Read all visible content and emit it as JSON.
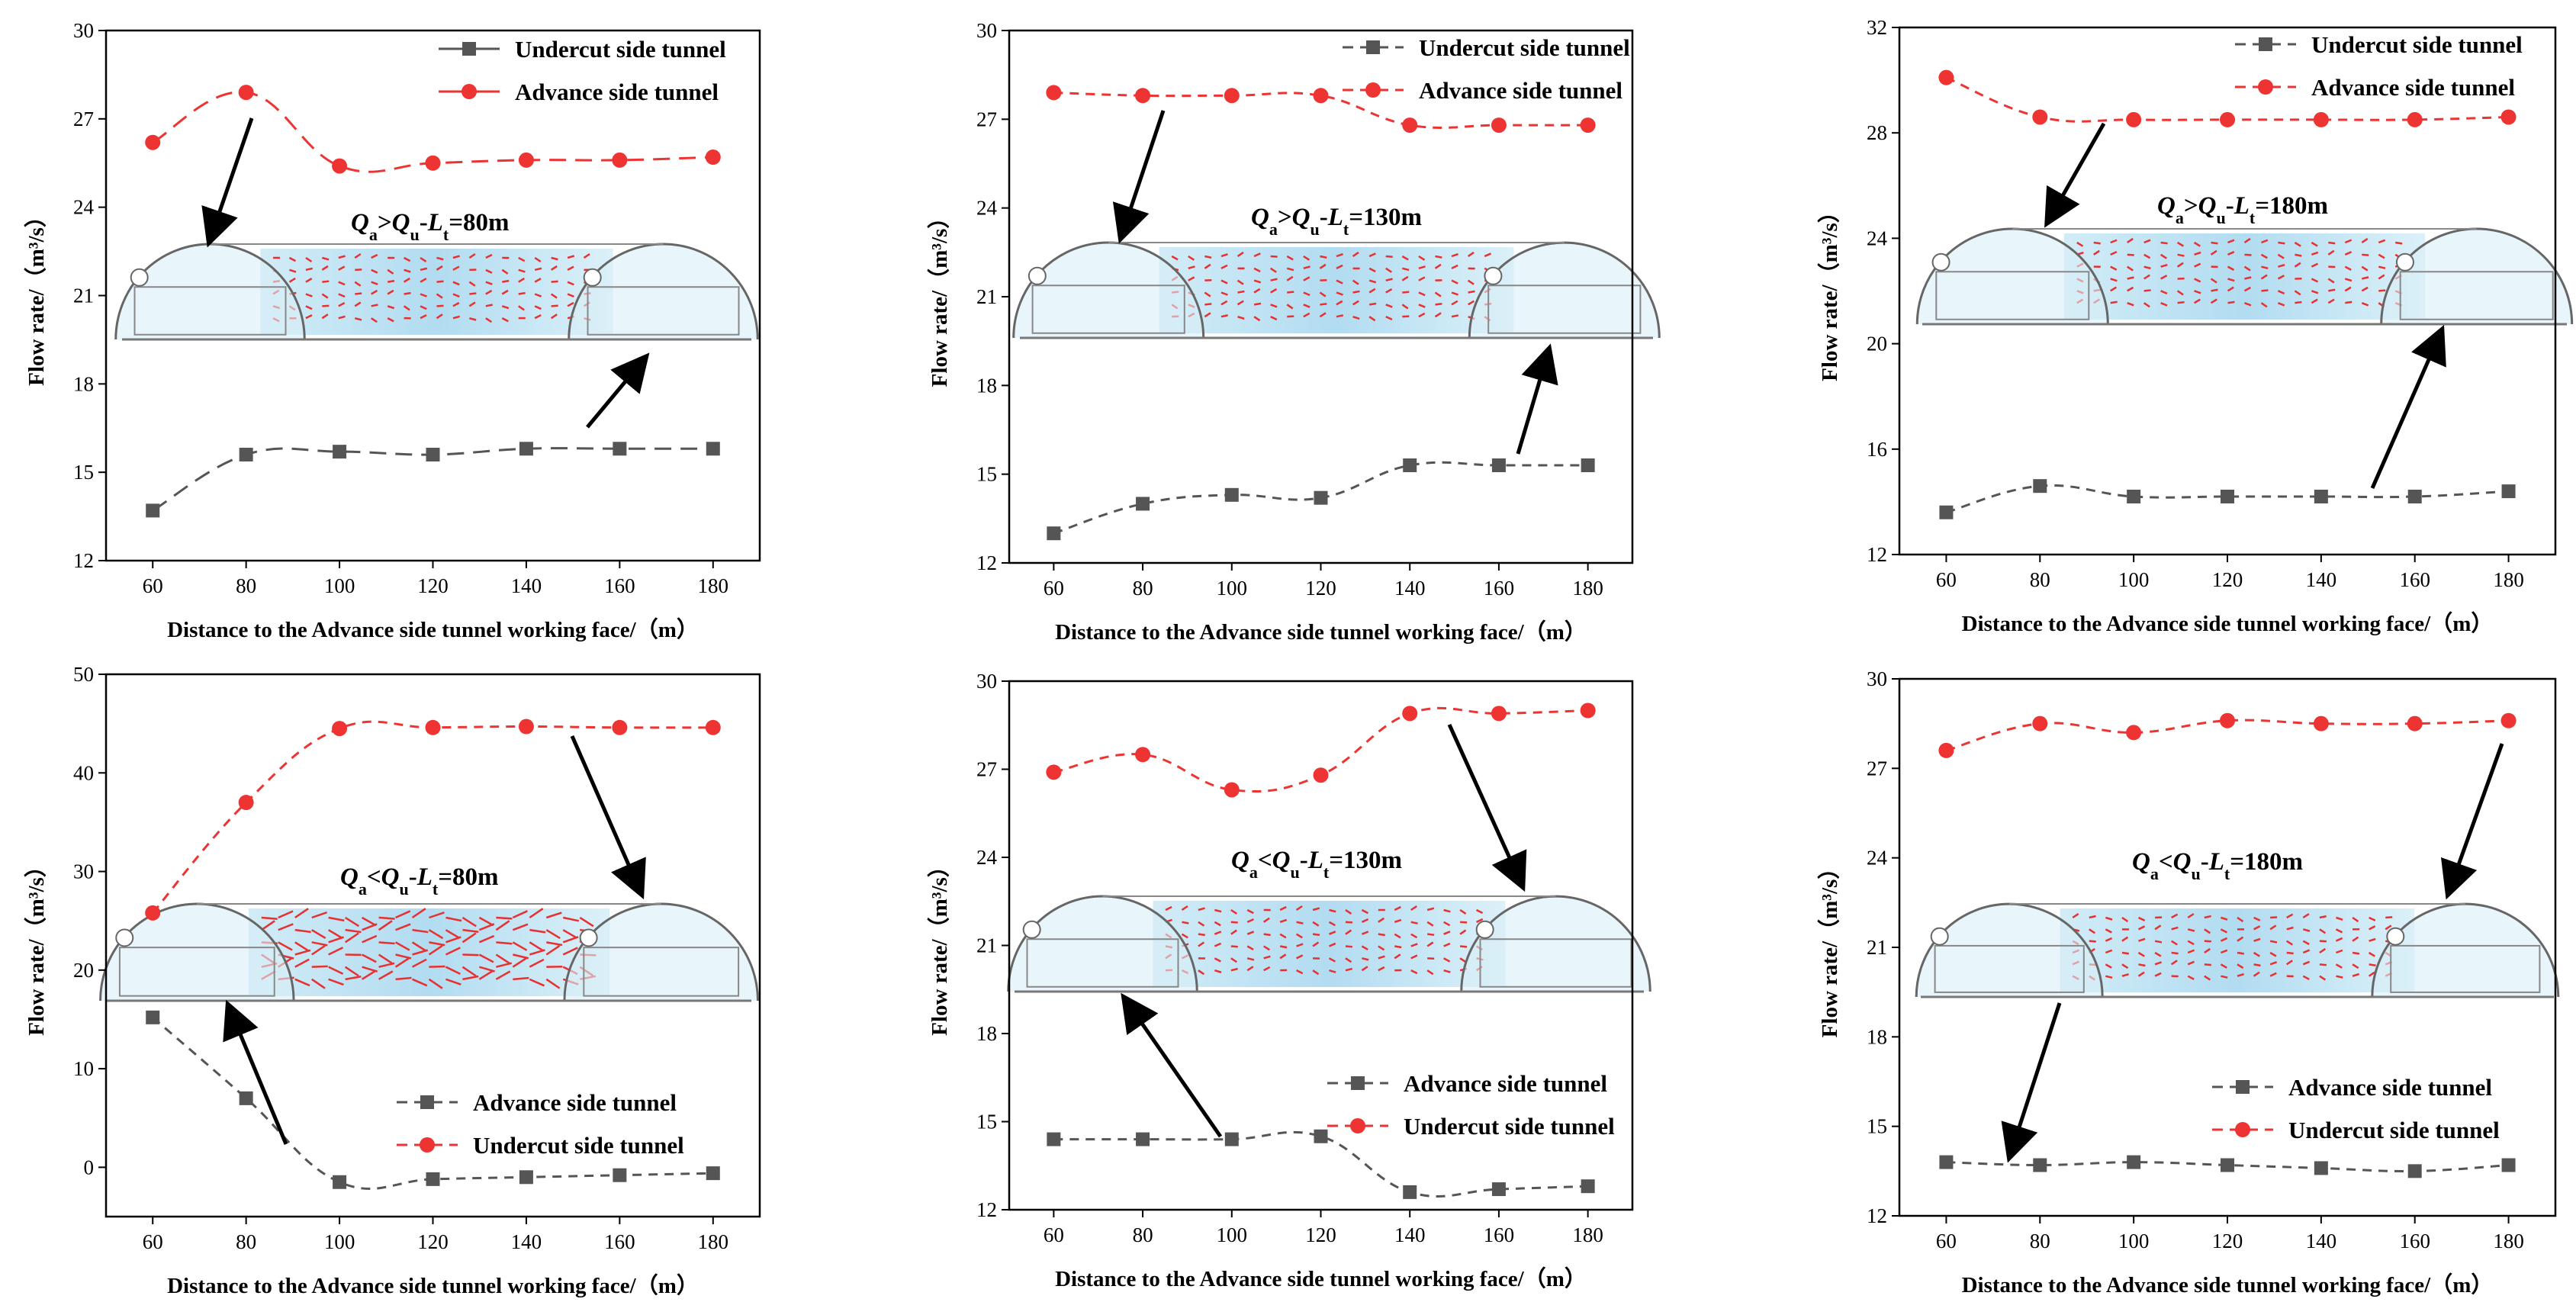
{
  "colors": {
    "undercut_gray": "#555555",
    "advance_red": "#ee3333",
    "axis": "#000000",
    "arrow": "#000000",
    "vector": "#e83030",
    "field_blue": "#a9d8ef"
  },
  "chart_data": [
    {
      "type": "line",
      "xlabel": "Distance to the Advance side tunnel  working face/（m）",
      "ylabel": "Flow rate/（m³/s）",
      "xlim": [
        50,
        190
      ],
      "ylim": [
        12,
        30
      ],
      "xticks": [
        "60",
        "80",
        "100",
        "120",
        "140",
        "160",
        "180"
      ],
      "yticks": [
        "12",
        "15",
        "18",
        "21",
        "24",
        "27",
        "30"
      ],
      "x": [
        60,
        80,
        100,
        120,
        140,
        160,
        180
      ],
      "legend_position": "top-right",
      "series": [
        {
          "name": "Undercut side tunnel",
          "style": "gray-square",
          "dash": "long",
          "values": [
            13.7,
            15.6,
            15.7,
            15.6,
            15.8,
            15.8,
            15.8
          ]
        },
        {
          "name": "Advance side tunnel",
          "style": "red-circle",
          "dash": "long",
          "values": [
            26.2,
            27.9,
            25.4,
            25.5,
            25.6,
            25.6,
            25.7
          ]
        }
      ],
      "annotation": {
        "Q1": "Q",
        "s1": "a",
        "op": ">",
        "Q2": "Q",
        "s2": "u",
        "dash": "-",
        "L": "L",
        "s3": "t",
        "value": "=80m"
      }
    },
    {
      "type": "line",
      "xlabel": "Distance to the Advance side tunnel  working face/（m）",
      "ylabel": "Flow rate/（m³/s）",
      "xlim": [
        50,
        190
      ],
      "ylim": [
        12,
        30
      ],
      "xticks": [
        "60",
        "80",
        "100",
        "120",
        "140",
        "160",
        "180"
      ],
      "yticks": [
        "12",
        "15",
        "18",
        "21",
        "24",
        "27",
        "30"
      ],
      "x": [
        60,
        80,
        100,
        120,
        140,
        160,
        180
      ],
      "legend_position": "top-right",
      "series": [
        {
          "name": "Undercut side tunnel",
          "style": "gray-square",
          "dash": "short",
          "values": [
            13.0,
            14.0,
            14.3,
            14.2,
            15.3,
            15.3,
            15.3
          ]
        },
        {
          "name": "Advance side tunnel",
          "style": "red-circle",
          "dash": "short",
          "values": [
            27.9,
            27.8,
            27.8,
            27.8,
            26.8,
            26.8,
            26.8
          ]
        }
      ],
      "annotation": {
        "Q1": "Q",
        "s1": "a",
        "op": ">",
        "Q2": "Q",
        "s2": "u",
        "dash": "-",
        "L": "L",
        "s3": "t",
        "value": "=130m"
      }
    },
    {
      "type": "line",
      "xlabel": "Distance to the Advance side tunnel  working face/（m）",
      "ylabel": "Flow rate/（m³/s）",
      "xlim": [
        50,
        190
      ],
      "ylim": [
        12,
        32
      ],
      "xticks": [
        "60",
        "80",
        "100",
        "120",
        "140",
        "160",
        "180"
      ],
      "yticks": [
        "12",
        "16",
        "20",
        "24",
        "28",
        "32"
      ],
      "x": [
        60,
        80,
        100,
        120,
        140,
        160,
        180
      ],
      "legend_position": "top-right",
      "series": [
        {
          "name": "Undercut side tunnel",
          "style": "gray-square",
          "dash": "short",
          "values": [
            13.6,
            14.6,
            14.2,
            14.2,
            14.2,
            14.2,
            14.4
          ]
        },
        {
          "name": "Advance side tunnel",
          "style": "red-circle",
          "dash": "short",
          "values": [
            30.1,
            28.6,
            28.5,
            28.5,
            28.5,
            28.5,
            28.6
          ]
        }
      ],
      "annotation": {
        "Q1": "Q",
        "s1": "a",
        "op": ">",
        "Q2": "Q",
        "s2": "u",
        "dash": "-",
        "L": "L",
        "s3": "t",
        "value": "=180m"
      }
    },
    {
      "type": "line",
      "xlabel": "Distance to the Advance side tunnel  working face/（m）",
      "ylabel": "Flow rate/（m³/s）",
      "xlim": [
        50,
        190
      ],
      "ylim": [
        -5,
        50
      ],
      "xticks": [
        "60",
        "80",
        "100",
        "120",
        "140",
        "160",
        "180"
      ],
      "yticks": [
        "0",
        "10",
        "20",
        "30",
        "40",
        "50"
      ],
      "x": [
        60,
        80,
        100,
        120,
        140,
        160,
        180
      ],
      "legend_position": "bottom-right",
      "series": [
        {
          "name": "Advance side tunnel",
          "style": "gray-square",
          "dash": "short",
          "values": [
            15.2,
            7.0,
            -1.5,
            -1.2,
            -1.0,
            -0.8,
            -0.6
          ]
        },
        {
          "name": "Undercut side tunnel",
          "style": "red-circle",
          "dash": "short",
          "values": [
            25.8,
            37.0,
            44.5,
            44.6,
            44.7,
            44.6,
            44.6
          ]
        }
      ],
      "annotation": {
        "Q1": "Q",
        "s1": "a",
        "op": "<",
        "Q2": "Q",
        "s2": "u",
        "dash": "-",
        "L": "L",
        "s3": "t",
        "value": "=80m"
      }
    },
    {
      "type": "line",
      "xlabel": "Distance to the Advance side tunnel  working face/（m）",
      "ylabel": "Flow rate/（m³/s）",
      "xlim": [
        50,
        190
      ],
      "ylim": [
        12,
        30
      ],
      "xticks": [
        "60",
        "80",
        "100",
        "120",
        "140",
        "160",
        "180"
      ],
      "yticks": [
        "12",
        "15",
        "18",
        "21",
        "24",
        "27",
        "30"
      ],
      "x": [
        60,
        80,
        100,
        120,
        140,
        160,
        180
      ],
      "legend_position": "bottom-right",
      "series": [
        {
          "name": "Advance side tunnel",
          "style": "gray-square",
          "dash": "short",
          "values": [
            14.4,
            14.4,
            14.4,
            14.5,
            12.6,
            12.7,
            12.8
          ]
        },
        {
          "name": "Undercut side tunnel",
          "style": "red-circle",
          "dash": "short",
          "values": [
            26.9,
            27.5,
            26.3,
            26.8,
            28.9,
            28.9,
            29.0
          ]
        }
      ],
      "annotation": {
        "Q1": "Q",
        "s1": "a",
        "op": "<",
        "Q2": "Q",
        "s2": "u",
        "dash": "-",
        "L": "L",
        "s3": "t",
        "value": "=130m"
      }
    },
    {
      "type": "line",
      "xlabel": "Distance to the Advance side tunnel  working face/（m）",
      "ylabel": "Flow rate/（m³/s）",
      "xlim": [
        50,
        190
      ],
      "ylim": [
        12,
        30
      ],
      "xticks": [
        "60",
        "80",
        "100",
        "120",
        "140",
        "160",
        "180"
      ],
      "yticks": [
        "12",
        "15",
        "18",
        "21",
        "24",
        "27",
        "30"
      ],
      "x": [
        60,
        80,
        100,
        120,
        140,
        160,
        180
      ],
      "legend_position": "bottom-right",
      "series": [
        {
          "name": "Advance side tunnel",
          "style": "gray-square",
          "dash": "short",
          "values": [
            13.8,
            13.7,
            13.8,
            13.7,
            13.6,
            13.5,
            13.7
          ]
        },
        {
          "name": "Undercut side tunnel",
          "style": "red-circle",
          "dash": "short",
          "values": [
            27.6,
            28.5,
            28.2,
            28.6,
            28.5,
            28.5,
            28.6
          ]
        }
      ],
      "annotation": {
        "Q1": "Q",
        "s1": "a",
        "op": "<",
        "Q2": "Q",
        "s2": "u",
        "dash": "-",
        "L": "L",
        "s3": "t",
        "value": "=180m"
      }
    }
  ]
}
